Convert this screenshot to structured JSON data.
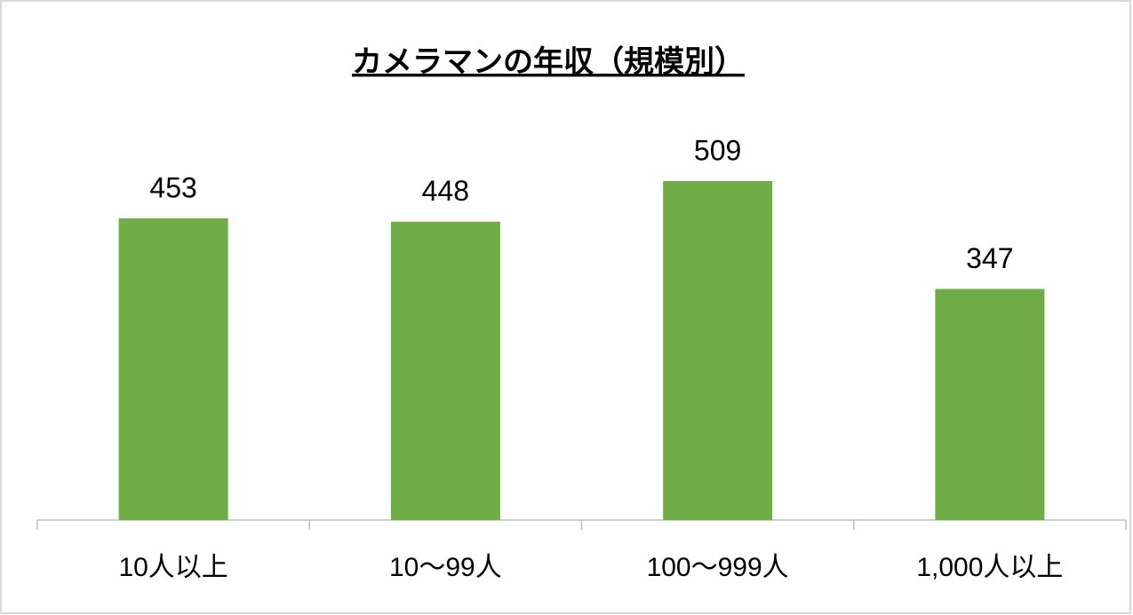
{
  "chart_data": {
    "type": "bar",
    "title": "カメラマンの年収（規模別）",
    "categories": [
      "10人以上",
      "10〜99人",
      "100〜999人",
      "1,000人以上"
    ],
    "values": [
      453,
      448,
      509,
      347
    ],
    "color": "#70ad47"
  }
}
